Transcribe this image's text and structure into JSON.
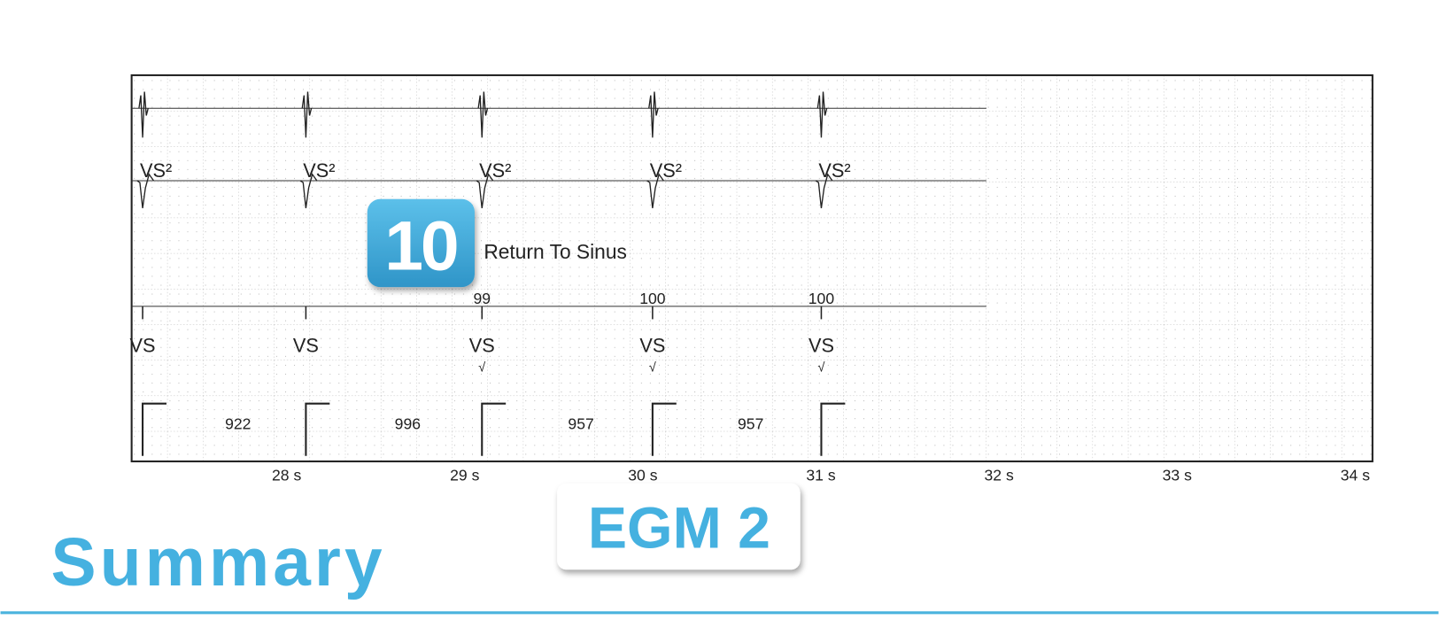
{
  "strip": {
    "beats": [
      {
        "marker": "VS²",
        "label": "VS"
      },
      {
        "marker": "VS²",
        "label": "VS"
      },
      {
        "marker": "VS²",
        "label": "VS",
        "rate": "99",
        "check": "√"
      },
      {
        "marker": "VS²",
        "label": "VS",
        "rate": "100",
        "check": "√"
      },
      {
        "marker": "VS²",
        "label": "VS",
        "rate": "100",
        "check": "√"
      }
    ],
    "intervals": [
      "922",
      "996",
      "957",
      "957"
    ],
    "time_labels": [
      "28 s",
      "29 s",
      "30 s",
      "31 s",
      "32 s",
      "33 s",
      "34 s"
    ]
  },
  "badge": {
    "number": "10",
    "text": "Return To Sinus"
  },
  "egm_label": "EGM 2",
  "section_title": "Summary"
}
